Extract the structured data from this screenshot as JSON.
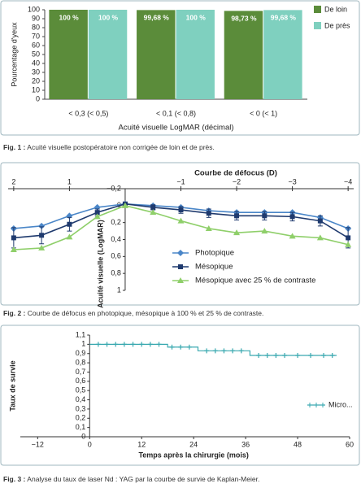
{
  "chart_data": [
    {
      "type": "bar",
      "x_label": "Acuité visuelle LogMAR (décimal)",
      "y_label": "Pourcentage d'yeux",
      "categories": [
        "< 0,3 (< 0,5)",
        "< 0,1 (< 0,8)",
        "< 0 (< 1)"
      ],
      "series": [
        {
          "name": "De loin",
          "color": "#5b8c3a",
          "values": [
            100,
            99.68,
            98.73
          ],
          "value_labels": [
            "100 %",
            "99,68 %",
            "98,73 %"
          ]
        },
        {
          "name": "De près",
          "color": "#7fd0bf",
          "values": [
            100,
            100,
            99.68
          ],
          "value_labels": [
            "100 %",
            "100 %",
            "99,68 %"
          ]
        }
      ],
      "ylim": [
        0,
        100
      ],
      "yticks": [
        0,
        10,
        20,
        30,
        40,
        50,
        60,
        70,
        80,
        90,
        100
      ],
      "legend": "right"
    },
    {
      "type": "line",
      "title": "Courbe de défocus (D)",
      "y_label": "Acuité visuelle (LogMAR)",
      "x": [
        2,
        1.5,
        1,
        0.5,
        0,
        -0.5,
        -1,
        -1.5,
        -2,
        -2.5,
        -3,
        -3.5,
        -4
      ],
      "series": [
        {
          "name": "Photopique",
          "color": "#4a86c8",
          "marker": "diamond",
          "values": [
            0.27,
            0.24,
            0.12,
            0.02,
            -0.02,
            0,
            0.02,
            0.06,
            0.08,
            0.08,
            0.08,
            0.14,
            0.27
          ]
        },
        {
          "name": "Mésopique",
          "color": "#1f3a6e",
          "marker": "square",
          "values": [
            0.38,
            0.35,
            0.22,
            0.08,
            -0.02,
            0.02,
            0.05,
            0.09,
            0.12,
            0.12,
            0.13,
            0.18,
            0.38
          ],
          "errors": [
            0.12,
            0.1,
            0.08,
            0.04,
            0.02,
            0.03,
            0.04,
            0.05,
            0.05,
            0.05,
            0.05,
            0.06,
            0.12
          ]
        },
        {
          "name": "Mésopique avec 25 % de contraste",
          "color": "#8fcf6a",
          "marker": "triangle",
          "values": [
            0.52,
            0.5,
            0.37,
            0.13,
            0,
            0.08,
            0.18,
            0.27,
            0.32,
            0.3,
            0.36,
            0.38,
            0.46
          ]
        }
      ],
      "xlim": [
        2.1,
        -4.1
      ],
      "xticks": [
        2,
        1,
        {
          "value": -1,
          "label": "−1"
        },
        {
          "value": -2,
          "label": "−2"
        },
        {
          "value": -3,
          "label": "−3"
        },
        {
          "value": -4,
          "label": "−4"
        }
      ],
      "ylim": [
        -0.2,
        1
      ],
      "y_inverted": true,
      "yticks": [
        {
          "value": -0.2,
          "label": "−0,2"
        },
        0,
        {
          "value": 0.2,
          "label": "0,2"
        },
        {
          "value": 0.4,
          "label": "0,4"
        },
        {
          "value": 0.6,
          "label": "0,6"
        },
        {
          "value": 0.8,
          "label": "0,8"
        },
        1
      ]
    },
    {
      "type": "step",
      "x_label": "Temps après la chirurgie (mois)",
      "y_label": "Taux de survie",
      "series": [
        {
          "name": "Micro...",
          "color": "#3aa9b0",
          "x": [
            0,
            18,
            18,
            25,
            25,
            37,
            37,
            57
          ],
          "values": [
            1,
            1,
            0.97,
            0.97,
            0.93,
            0.93,
            0.88,
            0.88
          ],
          "censor_x": [
            2,
            4,
            6,
            8,
            10,
            12,
            14,
            16,
            19,
            21,
            23,
            27,
            29,
            31,
            33,
            35,
            39,
            41,
            43,
            45,
            48,
            51,
            54,
            56
          ],
          "censor_values": [
            1,
            1,
            1,
            1,
            1,
            1,
            1,
            1,
            0.97,
            0.97,
            0.97,
            0.93,
            0.93,
            0.93,
            0.93,
            0.93,
            0.88,
            0.88,
            0.88,
            0.88,
            0.88,
            0.88,
            0.88,
            0.88
          ]
        }
      ],
      "xlim": [
        -16,
        60
      ],
      "xticks": [
        {
          "value": -12,
          "label": "−12"
        },
        0,
        12,
        24,
        36,
        48,
        60
      ],
      "ylim": [
        0,
        1.1
      ],
      "yticks": [
        0,
        {
          "value": 0.1,
          "label": "0,1"
        },
        {
          "value": 0.2,
          "label": "0,2"
        },
        {
          "value": 0.3,
          "label": "0,3"
        },
        {
          "value": 0.4,
          "label": "0,4"
        },
        {
          "value": 0.5,
          "label": "0,5"
        },
        {
          "value": 0.6,
          "label": "0,6"
        },
        {
          "value": 0.7,
          "label": "0,7"
        },
        {
          "value": 0.8,
          "label": "0,8"
        },
        {
          "value": 0.9,
          "label": "0,9"
        },
        1,
        {
          "value": 1.1,
          "label": "1,1"
        }
      ],
      "legend": "right"
    }
  ],
  "captions": [
    {
      "label": "Fig. 1 :",
      "text": "Acuité visuelle postopératoire non corrigée de loin et de près."
    },
    {
      "label": "Fig. 2 :",
      "text": "Courbe de défocus en photopique, mésopique à 100 % et 25 % de contraste."
    },
    {
      "label": "Fig. 3 :",
      "text": "Analyse du taux de laser Nd : YAG par la courbe de survie de Kaplan-Meier."
    }
  ]
}
